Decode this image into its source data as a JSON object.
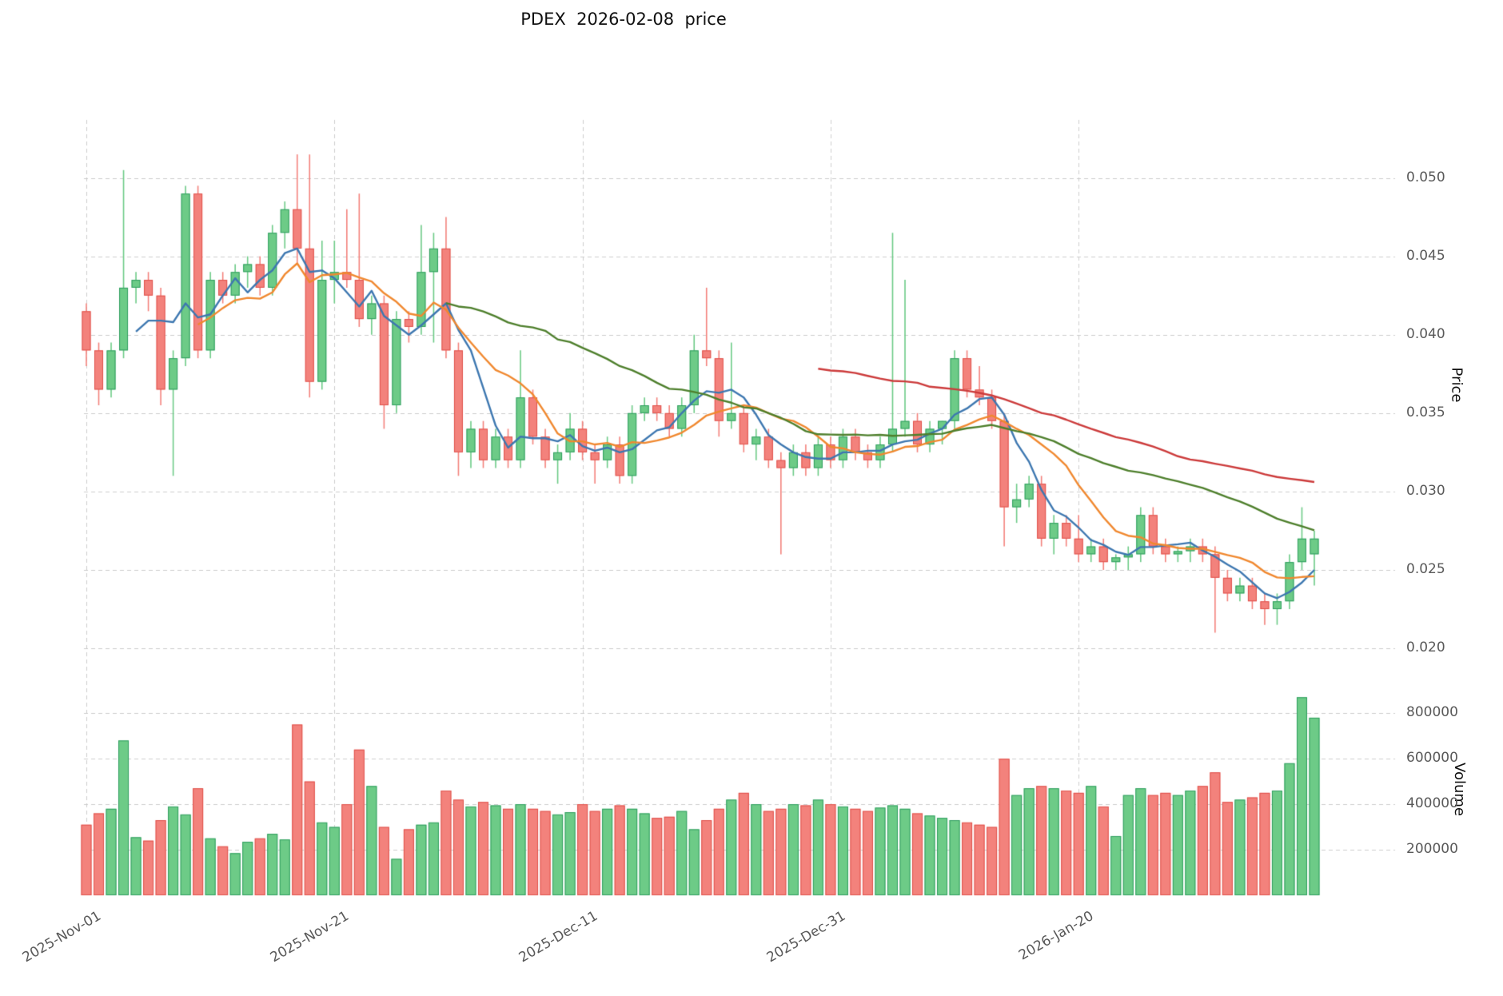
{
  "title": "PDEX  2026-02-08  price",
  "axes": {
    "price_label": "Price",
    "volume_label": "Volume",
    "price_ticks": [
      {
        "value": 0.02,
        "label": "0.020"
      },
      {
        "value": 0.025,
        "label": "0.025"
      },
      {
        "value": 0.03,
        "label": "0.030"
      },
      {
        "value": 0.035,
        "label": "0.035"
      },
      {
        "value": 0.04,
        "label": "0.040"
      },
      {
        "value": 0.045,
        "label": "0.045"
      },
      {
        "value": 0.05,
        "label": "0.050"
      }
    ],
    "volume_ticks": [
      {
        "value": 200000,
        "label": "200000"
      },
      {
        "value": 400000,
        "label": "400000"
      },
      {
        "value": 600000,
        "label": "600000"
      },
      {
        "value": 800000,
        "label": "800000"
      }
    ],
    "x_ticks": [
      {
        "index": 0,
        "label": "2025-Nov-01"
      },
      {
        "index": 20,
        "label": "2025-Nov-21"
      },
      {
        "index": 40,
        "label": "2025-Dec-11"
      },
      {
        "index": 60,
        "label": "2025-Dec-31"
      },
      {
        "index": 80,
        "label": "2026-Jan-20"
      }
    ]
  },
  "style": {
    "up_fill": "#6dcb87",
    "up_edge": "#2f9e5f",
    "down_fill": "#f3827c",
    "down_edge": "#e0524c",
    "grid_color": "#cccccc",
    "text_color": "#595959"
  },
  "chart_data": {
    "type": "candlestick_with_volume",
    "price_ylim": [
      0.0198,
      0.0537
    ],
    "volume_ylim": [
      0,
      920000
    ],
    "moving_averages": [
      {
        "window": 5,
        "color": "#3d77b0"
      },
      {
        "window": 10,
        "color": "#f0882f"
      },
      {
        "window": 30,
        "color": "#4e7f2c"
      },
      {
        "window": 60,
        "color": "#cc3b3b"
      }
    ],
    "candles": [
      [
        "2025-11-01",
        0.0415,
        0.042,
        0.038,
        0.039,
        310000
      ],
      [
        "2025-11-02",
        0.039,
        0.0395,
        0.0355,
        0.0365,
        360000
      ],
      [
        "2025-11-03",
        0.0365,
        0.0395,
        0.036,
        0.039,
        380000
      ],
      [
        "2025-11-04",
        0.039,
        0.0505,
        0.0385,
        0.043,
        680000
      ],
      [
        "2025-11-05",
        0.043,
        0.044,
        0.042,
        0.0435,
        255000
      ],
      [
        "2025-11-06",
        0.0435,
        0.044,
        0.0415,
        0.0425,
        240000
      ],
      [
        "2025-11-07",
        0.0425,
        0.043,
        0.0355,
        0.0365,
        330000
      ],
      [
        "2025-11-08",
        0.0365,
        0.039,
        0.031,
        0.0385,
        390000
      ],
      [
        "2025-11-09",
        0.0385,
        0.0495,
        0.038,
        0.049,
        355000
      ],
      [
        "2025-11-10",
        0.049,
        0.0495,
        0.0385,
        0.039,
        470000
      ],
      [
        "2025-11-11",
        0.039,
        0.044,
        0.0385,
        0.0435,
        250000
      ],
      [
        "2025-11-12",
        0.0435,
        0.044,
        0.042,
        0.0425,
        215000
      ],
      [
        "2025-11-13",
        0.0425,
        0.0445,
        0.042,
        0.044,
        185000
      ],
      [
        "2025-11-14",
        0.044,
        0.045,
        0.043,
        0.0445,
        235000
      ],
      [
        "2025-11-15",
        0.0445,
        0.045,
        0.0425,
        0.043,
        250000
      ],
      [
        "2025-11-16",
        0.043,
        0.047,
        0.0425,
        0.0465,
        270000
      ],
      [
        "2025-11-17",
        0.0465,
        0.0485,
        0.0455,
        0.048,
        245000
      ],
      [
        "2025-11-18",
        0.048,
        0.0515,
        0.0445,
        0.0455,
        750000
      ],
      [
        "2025-11-19",
        0.0455,
        0.0515,
        0.036,
        0.037,
        500000
      ],
      [
        "2025-11-20",
        0.037,
        0.046,
        0.0365,
        0.0435,
        320000
      ],
      [
        "2025-11-21",
        0.0435,
        0.046,
        0.042,
        0.044,
        300000
      ],
      [
        "2025-11-22",
        0.044,
        0.048,
        0.043,
        0.0435,
        400000
      ],
      [
        "2025-11-23",
        0.0435,
        0.049,
        0.0405,
        0.041,
        640000
      ],
      [
        "2025-11-24",
        0.041,
        0.0425,
        0.04,
        0.042,
        480000
      ],
      [
        "2025-11-25",
        0.042,
        0.0425,
        0.034,
        0.0355,
        300000
      ],
      [
        "2025-11-26",
        0.0355,
        0.0415,
        0.035,
        0.041,
        160000
      ],
      [
        "2025-11-27",
        0.041,
        0.0415,
        0.0395,
        0.0405,
        290000
      ],
      [
        "2025-11-28",
        0.0405,
        0.047,
        0.04,
        0.044,
        310000
      ],
      [
        "2025-11-29",
        0.044,
        0.0465,
        0.0395,
        0.0455,
        320000
      ],
      [
        "2025-11-30",
        0.0455,
        0.0475,
        0.0385,
        0.039,
        460000
      ],
      [
        "2025-12-01",
        0.039,
        0.0395,
        0.031,
        0.0325,
        420000
      ],
      [
        "2025-12-02",
        0.0325,
        0.0345,
        0.0315,
        0.034,
        390000
      ],
      [
        "2025-12-03",
        0.034,
        0.0345,
        0.0315,
        0.032,
        410000
      ],
      [
        "2025-12-04",
        0.032,
        0.034,
        0.0315,
        0.0335,
        395000
      ],
      [
        "2025-12-05",
        0.0335,
        0.034,
        0.0315,
        0.032,
        380000
      ],
      [
        "2025-12-06",
        0.032,
        0.039,
        0.0315,
        0.036,
        400000
      ],
      [
        "2025-12-07",
        0.036,
        0.0365,
        0.033,
        0.0335,
        380000
      ],
      [
        "2025-12-08",
        0.0335,
        0.034,
        0.0315,
        0.032,
        370000
      ],
      [
        "2025-12-09",
        0.032,
        0.033,
        0.0305,
        0.0325,
        355000
      ],
      [
        "2025-12-10",
        0.0325,
        0.035,
        0.032,
        0.034,
        365000
      ],
      [
        "2025-12-11",
        0.034,
        0.0345,
        0.032,
        0.0325,
        400000
      ],
      [
        "2025-12-12",
        0.0325,
        0.033,
        0.0305,
        0.032,
        370000
      ],
      [
        "2025-12-13",
        0.032,
        0.0335,
        0.0315,
        0.033,
        380000
      ],
      [
        "2025-12-14",
        0.033,
        0.0335,
        0.0305,
        0.031,
        395000
      ],
      [
        "2025-12-15",
        0.031,
        0.0355,
        0.0305,
        0.035,
        380000
      ],
      [
        "2025-12-16",
        0.035,
        0.036,
        0.0345,
        0.0355,
        360000
      ],
      [
        "2025-12-17",
        0.0355,
        0.036,
        0.0345,
        0.035,
        340000
      ],
      [
        "2025-12-18",
        0.035,
        0.0355,
        0.0335,
        0.034,
        345000
      ],
      [
        "2025-12-19",
        0.034,
        0.036,
        0.0335,
        0.0355,
        370000
      ],
      [
        "2025-12-20",
        0.0355,
        0.04,
        0.035,
        0.039,
        290000
      ],
      [
        "2025-12-21",
        0.039,
        0.043,
        0.038,
        0.0385,
        330000
      ],
      [
        "2025-12-22",
        0.0385,
        0.039,
        0.0335,
        0.0345,
        380000
      ],
      [
        "2025-12-23",
        0.0345,
        0.0395,
        0.034,
        0.035,
        420000
      ],
      [
        "2025-12-24",
        0.035,
        0.0355,
        0.0325,
        0.033,
        450000
      ],
      [
        "2025-12-25",
        0.033,
        0.034,
        0.032,
        0.0335,
        400000
      ],
      [
        "2025-12-26",
        0.0335,
        0.034,
        0.0315,
        0.032,
        370000
      ],
      [
        "2025-12-27",
        0.032,
        0.0325,
        0.026,
        0.0315,
        380000
      ],
      [
        "2025-12-28",
        0.0315,
        0.033,
        0.031,
        0.0325,
        400000
      ],
      [
        "2025-12-29",
        0.0325,
        0.033,
        0.031,
        0.0315,
        395000
      ],
      [
        "2025-12-30",
        0.0315,
        0.0335,
        0.031,
        0.033,
        420000
      ],
      [
        "2025-12-31",
        0.033,
        0.0335,
        0.0315,
        0.032,
        400000
      ],
      [
        "2026-01-01",
        0.032,
        0.034,
        0.0315,
        0.0335,
        390000
      ],
      [
        "2026-01-02",
        0.0335,
        0.034,
        0.032,
        0.0325,
        380000
      ],
      [
        "2026-01-03",
        0.0325,
        0.033,
        0.0315,
        0.032,
        370000
      ],
      [
        "2026-01-04",
        0.032,
        0.0335,
        0.0315,
        0.033,
        385000
      ],
      [
        "2026-01-05",
        0.033,
        0.0465,
        0.0325,
        0.034,
        395000
      ],
      [
        "2026-01-06",
        0.034,
        0.0435,
        0.0335,
        0.0345,
        380000
      ],
      [
        "2026-01-07",
        0.0345,
        0.035,
        0.0325,
        0.033,
        360000
      ],
      [
        "2026-01-08",
        0.033,
        0.0345,
        0.0325,
        0.034,
        350000
      ],
      [
        "2026-01-09",
        0.034,
        0.0345,
        0.033,
        0.0345,
        340000
      ],
      [
        "2026-01-10",
        0.0345,
        0.039,
        0.034,
        0.0385,
        330000
      ],
      [
        "2026-01-11",
        0.0385,
        0.039,
        0.036,
        0.0365,
        320000
      ],
      [
        "2026-01-12",
        0.0365,
        0.038,
        0.0355,
        0.036,
        310000
      ],
      [
        "2026-01-13",
        0.036,
        0.0365,
        0.034,
        0.0345,
        300000
      ],
      [
        "2026-01-14",
        0.0345,
        0.035,
        0.0265,
        0.029,
        600000
      ],
      [
        "2026-01-15",
        0.029,
        0.0305,
        0.028,
        0.0295,
        440000
      ],
      [
        "2026-01-16",
        0.0295,
        0.031,
        0.029,
        0.0305,
        470000
      ],
      [
        "2026-01-17",
        0.0305,
        0.031,
        0.0265,
        0.027,
        480000
      ],
      [
        "2026-01-18",
        0.027,
        0.0285,
        0.026,
        0.028,
        470000
      ],
      [
        "2026-01-19",
        0.028,
        0.0285,
        0.0265,
        0.027,
        460000
      ],
      [
        "2026-01-20",
        0.027,
        0.0285,
        0.0255,
        0.026,
        450000
      ],
      [
        "2026-01-21",
        0.026,
        0.027,
        0.0255,
        0.0265,
        480000
      ],
      [
        "2026-01-22",
        0.0265,
        0.027,
        0.025,
        0.0255,
        390000
      ],
      [
        "2026-01-23",
        0.0255,
        0.026,
        0.025,
        0.0258,
        260000
      ],
      [
        "2026-01-24",
        0.0258,
        0.0265,
        0.025,
        0.026,
        440000
      ],
      [
        "2026-01-25",
        0.026,
        0.029,
        0.0255,
        0.0285,
        470000
      ],
      [
        "2026-01-26",
        0.0285,
        0.029,
        0.026,
        0.0265,
        440000
      ],
      [
        "2026-01-27",
        0.0265,
        0.027,
        0.0255,
        0.026,
        450000
      ],
      [
        "2026-01-28",
        0.026,
        0.0265,
        0.0255,
        0.0262,
        440000
      ],
      [
        "2026-01-29",
        0.0262,
        0.027,
        0.0255,
        0.0265,
        460000
      ],
      [
        "2026-01-30",
        0.0265,
        0.027,
        0.0255,
        0.026,
        480000
      ],
      [
        "2026-01-31",
        0.026,
        0.0265,
        0.021,
        0.0245,
        540000
      ],
      [
        "2026-02-01",
        0.0245,
        0.025,
        0.023,
        0.0235,
        410000
      ],
      [
        "2026-02-02",
        0.0235,
        0.0245,
        0.023,
        0.024,
        420000
      ],
      [
        "2026-02-03",
        0.024,
        0.0245,
        0.0225,
        0.023,
        430000
      ],
      [
        "2026-02-04",
        0.023,
        0.0235,
        0.0215,
        0.0225,
        450000
      ],
      [
        "2026-02-05",
        0.0225,
        0.0235,
        0.0215,
        0.023,
        460000
      ],
      [
        "2026-02-06",
        0.023,
        0.026,
        0.0225,
        0.0255,
        580000
      ],
      [
        "2026-02-07",
        0.0255,
        0.029,
        0.025,
        0.027,
        870000
      ],
      [
        "2026-02-08",
        0.026,
        0.0275,
        0.024,
        0.027,
        780000
      ]
    ]
  }
}
